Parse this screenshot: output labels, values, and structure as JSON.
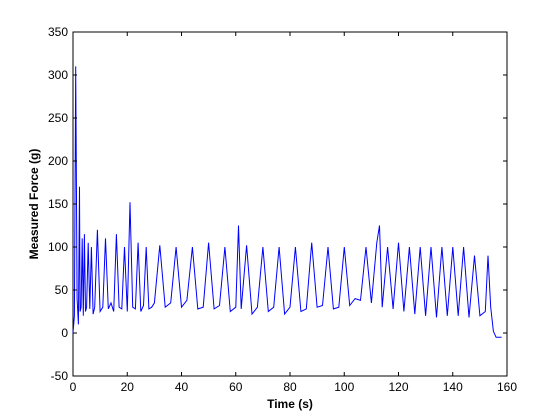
{
  "chart_data": {
    "type": "line",
    "title": "",
    "xlabel": "Time (s)",
    "ylabel": "Measured Force (g)",
    "xlim": [
      0,
      160
    ],
    "ylim": [
      -50,
      350
    ],
    "xticks": [
      0,
      20,
      40,
      60,
      80,
      100,
      120,
      140,
      160
    ],
    "yticks": [
      -50,
      0,
      50,
      100,
      150,
      200,
      250,
      300,
      350
    ],
    "grid": false,
    "legend": "none",
    "line_color": "#0000ff",
    "series": [
      {
        "x": [
          0,
          0.5,
          1.0,
          1.5,
          2.0,
          2.4,
          2.6,
          3.0,
          3.4,
          3.8,
          4.2,
          4.6,
          5.0,
          5.6,
          6.2,
          6.8,
          7.4,
          8.0,
          9.0,
          10.0,
          11.0,
          12.0,
          13.0,
          14.0,
          15.0,
          16.0,
          17.0,
          18.0,
          19.0,
          20.0,
          21.0,
          22.0,
          23.0,
          24.0,
          25.0,
          26.0,
          27.0,
          28.0,
          29.0,
          30.0,
          32.0,
          34.0,
          36.0,
          38.0,
          40.0,
          42.0,
          44.0,
          46.0,
          48.0,
          50.0,
          52.0,
          54.0,
          56.0,
          58.0,
          60.0,
          61.0,
          62.0,
          64.0,
          66.0,
          68.0,
          70.0,
          72.0,
          74.0,
          76.0,
          78.0,
          80.0,
          82.0,
          84.0,
          86.0,
          88.0,
          90.0,
          92.0,
          94.0,
          96.0,
          98.0,
          100.0,
          102.0,
          104.0,
          106.0,
          108.0,
          110.0,
          112.0,
          113.0,
          114.0,
          116.0,
          118.0,
          120.0,
          122.0,
          124.0,
          126.0,
          128.0,
          130.0,
          132.0,
          134.0,
          136.0,
          138.0,
          140.0,
          142.0,
          144.0,
          146.0,
          148.0,
          150.0,
          152.0,
          153.0,
          154.0,
          155.0,
          156.0,
          157.0,
          158.0
        ],
        "y": [
          0,
          20,
          310,
          40,
          10,
          170,
          25,
          30,
          110,
          20,
          115,
          25,
          30,
          105,
          28,
          100,
          22,
          30,
          120,
          25,
          30,
          110,
          28,
          35,
          25,
          115,
          30,
          28,
          100,
          25,
          152,
          30,
          28,
          105,
          25,
          32,
          100,
          28,
          30,
          35,
          102,
          30,
          35,
          100,
          30,
          38,
          100,
          28,
          30,
          105,
          28,
          32,
          100,
          25,
          30,
          125,
          28,
          102,
          22,
          30,
          100,
          25,
          30,
          100,
          22,
          30,
          100,
          25,
          28,
          105,
          30,
          32,
          100,
          28,
          30,
          100,
          32,
          40,
          38,
          100,
          35,
          105,
          125,
          30,
          100,
          28,
          105,
          25,
          100,
          22,
          100,
          20,
          100,
          18,
          100,
          20,
          100,
          20,
          100,
          18,
          90,
          20,
          25,
          90,
          30,
          2,
          -5,
          -5,
          -5
        ]
      }
    ]
  }
}
